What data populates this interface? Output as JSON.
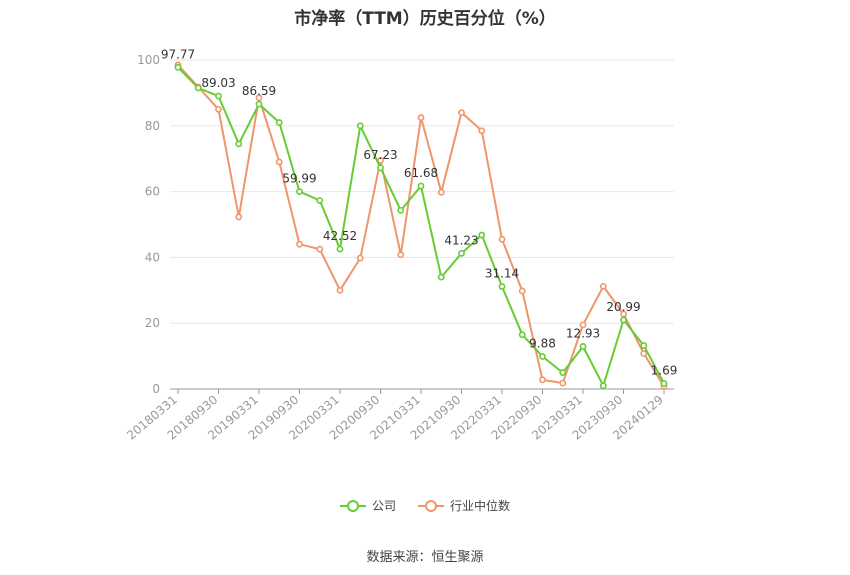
{
  "title": "市净率（TTM）历史百分位（%）",
  "source": "数据来源：恒生聚源",
  "colors": {
    "company": "#66cc33",
    "industry": "#f0956a",
    "grid": "#e6e6ee",
    "axis": "#999999"
  },
  "chart_data": {
    "type": "line",
    "title": "市净率（TTM）历史百分位（%）",
    "ylim": [
      0,
      100
    ],
    "yticks": [
      0,
      20,
      40,
      60,
      80,
      100
    ],
    "grid": true,
    "legend_position": "bottom-center",
    "x_tick_labels": [
      "20180331",
      "20180930",
      "20190331",
      "20190930",
      "20200331",
      "20200930",
      "20210331",
      "20210930",
      "20220331",
      "20220930",
      "20230331",
      "20230930",
      "20240129"
    ],
    "x_points": 25,
    "series": [
      {
        "name": "公司",
        "color": "#66cc33",
        "values": [
          97.77,
          91.5,
          89.03,
          74.5,
          86.59,
          81.0,
          59.99,
          57.3,
          42.52,
          80.0,
          67.23,
          54.3,
          61.68,
          34.0,
          41.23,
          46.8,
          31.14,
          16.5,
          9.88,
          5.0,
          12.93,
          1.0,
          20.99,
          13.2,
          1.69
        ],
        "labels": {
          "0": "97.77",
          "2": "89.03",
          "4": "86.59",
          "6": "59.99",
          "8": "42.52",
          "10": "67.23",
          "12": "61.68",
          "14": "41.23",
          "16": "31.14",
          "18": "9.88",
          "20": "12.93",
          "22": "20.99",
          "24": "1.69"
        }
      },
      {
        "name": "行业中位数",
        "color": "#f0956a",
        "values": [
          98.5,
          91.8,
          85.0,
          52.3,
          88.5,
          69.0,
          44.0,
          42.5,
          30.0,
          39.8,
          69.5,
          40.8,
          82.5,
          59.8,
          84.0,
          78.5,
          45.5,
          29.8,
          2.8,
          1.8,
          19.5,
          31.2,
          22.8,
          10.8,
          0.8
        ]
      }
    ]
  }
}
